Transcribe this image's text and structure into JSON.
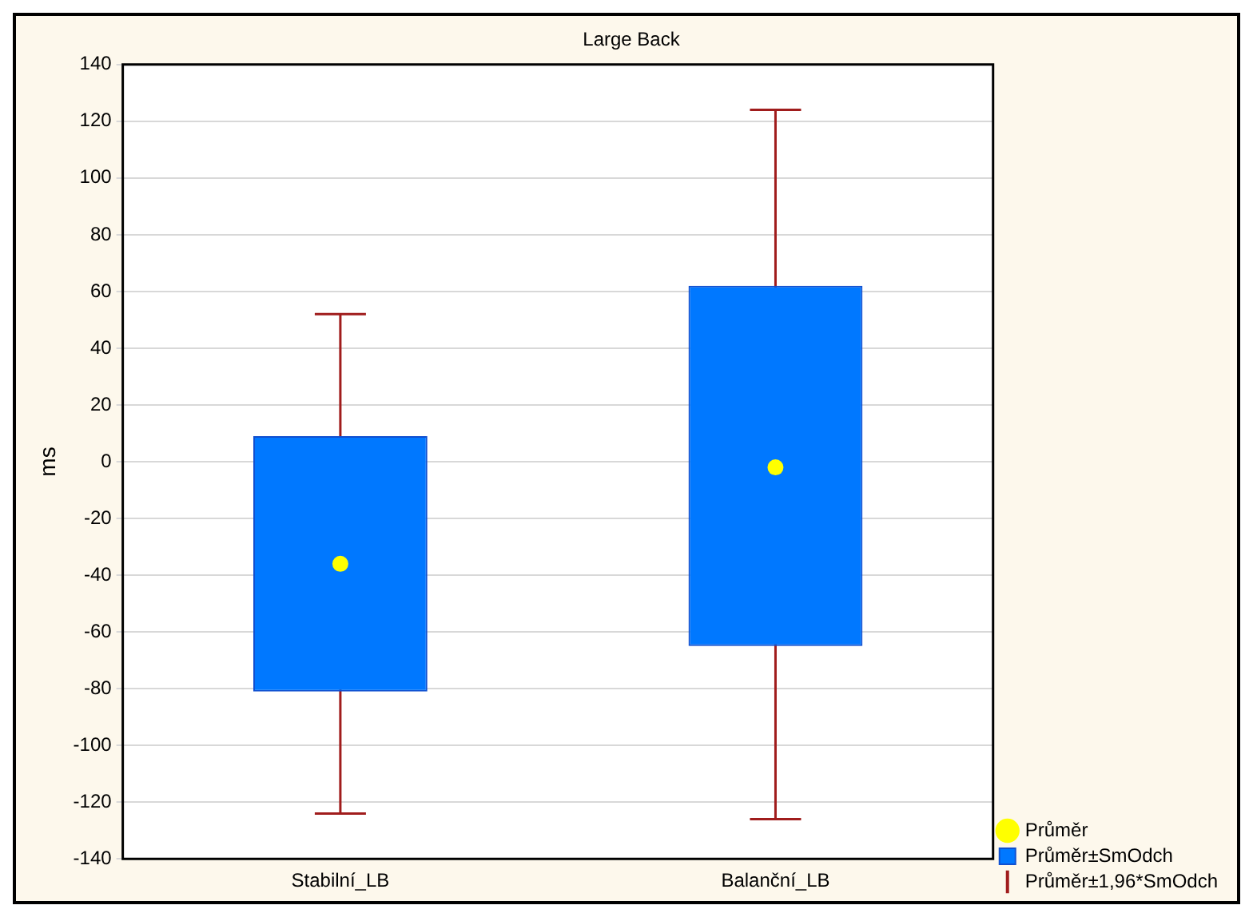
{
  "chart_data": {
    "type": "bar",
    "title": "Large Back",
    "ylabel": "ms",
    "categories": [
      "Stabilní_LB",
      "Balanční_LB"
    ],
    "series": [
      {
        "name": "Průměr",
        "type": "scatter",
        "color": "#ffff00",
        "marker": "circle",
        "values": [
          -36,
          -2
        ],
        "errors": [
          [
            -124,
            52
          ],
          [
            -126,
            124
          ]
        ]
      },
      {
        "name": "Průměr±SmOdch",
        "color": "#0078ff",
        "base": [
          -81,
          -65
        ],
        "values": [
          90,
          127
        ]
      },
      {
        "name": "Průměr±1,96*SmOdch",
        "type": "scatter",
        "color": "#a01c1c",
        "marker": "none",
        "values": [
          null,
          null
        ]
      }
    ],
    "ylim": [
      -140,
      140
    ],
    "yticks": [
      -140,
      -120,
      -100,
      -80,
      -60,
      -40,
      -20,
      0,
      20,
      40,
      60,
      80,
      100,
      120,
      140
    ],
    "grid": "y",
    "legend": "bottom right"
  }
}
